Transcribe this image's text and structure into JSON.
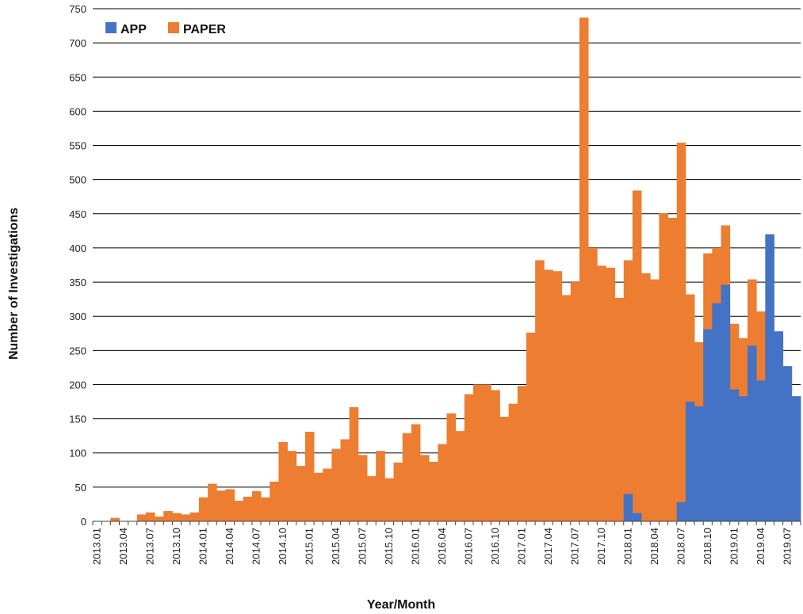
{
  "chart_data": {
    "type": "bar",
    "stacking": "overlap",
    "xlabel": "Year/Month",
    "ylabel": "Number of Investigations",
    "ylim": [
      0,
      750
    ],
    "ytick_step": 50,
    "grid": true,
    "legend_position": "top-left",
    "categories": [
      "2013.01",
      "2013.02",
      "2013.03",
      "2013.04",
      "2013.05",
      "2013.06",
      "2013.07",
      "2013.08",
      "2013.09",
      "2013.10",
      "2013.11",
      "2013.12",
      "2014.01",
      "2014.02",
      "2014.03",
      "2014.04",
      "2014.05",
      "2014.06",
      "2014.07",
      "2014.08",
      "2014.09",
      "2014.10",
      "2014.11",
      "2014.12",
      "2015.01",
      "2015.02",
      "2015.03",
      "2015.04",
      "2015.05",
      "2015.06",
      "2015.07",
      "2015.08",
      "2015.09",
      "2015.10",
      "2015.11",
      "2015.12",
      "2016.01",
      "2016.02",
      "2016.03",
      "2016.04",
      "2016.05",
      "2016.06",
      "2016.07",
      "2016.08",
      "2016.09",
      "2016.10",
      "2016.11",
      "2016.12",
      "2017.01",
      "2017.02",
      "2017.03",
      "2017.04",
      "2017.05",
      "2017.06",
      "2017.07",
      "2017.08",
      "2017.09",
      "2017.10",
      "2017.11",
      "2017.12",
      "2018.01",
      "2018.02",
      "2018.03",
      "2018.04",
      "2018.05",
      "2018.06",
      "2018.07",
      "2018.08",
      "2018.09",
      "2018.10",
      "2018.11",
      "2018.12",
      "2019.01",
      "2019.02",
      "2019.03",
      "2019.04",
      "2019.05",
      "2019.06",
      "2019.07",
      "2019.08"
    ],
    "tick_labels": [
      "2013.01",
      "2013.04",
      "2013.07",
      "2013.10",
      "2014.01",
      "2014.04",
      "2014.07",
      "2014.10",
      "2015.01",
      "2015.04",
      "2015.07",
      "2015.10",
      "2016.01",
      "2016.04",
      "2016.07",
      "2016.10",
      "2017.01",
      "2017.04",
      "2017.07",
      "2017.10",
      "2018.01",
      "2018.04",
      "2018.07",
      "2018.10",
      "2019.01",
      "2019.04",
      "2019.07"
    ],
    "series": [
      {
        "name": "PAPER",
        "color": "#ED7D31",
        "values": [
          0,
          0,
          5,
          0,
          0,
          10,
          13,
          7,
          15,
          12,
          10,
          13,
          35,
          55,
          45,
          47,
          30,
          36,
          44,
          35,
          58,
          116,
          103,
          81,
          131,
          71,
          77,
          106,
          120,
          167,
          97,
          66,
          103,
          63,
          86,
          129,
          142,
          97,
          87,
          113,
          158,
          132,
          186,
          200,
          200,
          192,
          153,
          172,
          198,
          276,
          382,
          368,
          366,
          331,
          350,
          737,
          400,
          374,
          371,
          327,
          382,
          484,
          363,
          354,
          451,
          444,
          554,
          332,
          262,
          392,
          400,
          433,
          289,
          268,
          354,
          307,
          0,
          0,
          0,
          0
        ]
      },
      {
        "name": "APP",
        "color": "#4472C4",
        "values": [
          0,
          0,
          0,
          0,
          0,
          0,
          0,
          0,
          0,
          0,
          0,
          0,
          0,
          0,
          0,
          0,
          0,
          0,
          0,
          0,
          0,
          0,
          0,
          0,
          0,
          0,
          0,
          0,
          0,
          0,
          0,
          0,
          0,
          0,
          0,
          0,
          0,
          0,
          0,
          0,
          0,
          0,
          0,
          0,
          0,
          0,
          0,
          0,
          0,
          0,
          0,
          0,
          0,
          0,
          0,
          0,
          0,
          0,
          0,
          0,
          40,
          12,
          0,
          0,
          0,
          0,
          28,
          175,
          168,
          281,
          319,
          346,
          193,
          183,
          257,
          206,
          420,
          278,
          227,
          183
        ]
      }
    ]
  }
}
